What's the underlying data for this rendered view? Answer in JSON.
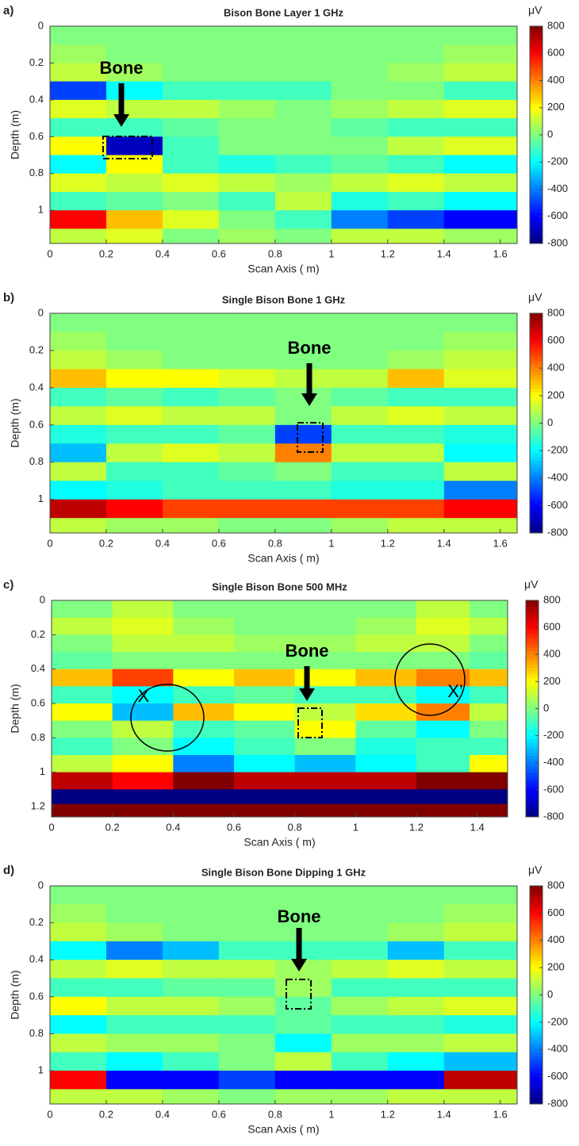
{
  "chart_data": [
    {
      "type": "heatmap",
      "panel": "a)",
      "title": "Bison Bone Layer 1 GHz",
      "xlabel": "Scan Axis ( m)",
      "ylabel": "Depth (m)",
      "xlim": [
        0,
        1.66
      ],
      "ylim": [
        0,
        1.18
      ],
      "y_reversed": true,
      "xticks": [
        0,
        0.2,
        0.4,
        0.6,
        0.8,
        1,
        1.2,
        1.4,
        1.6
      ],
      "yticks": [
        0,
        0.2,
        0.4,
        0.6,
        0.8,
        1
      ],
      "x": [
        0.1,
        0.3,
        0.5,
        0.7,
        0.9,
        1.1,
        1.3,
        1.5
      ],
      "y": [
        0.05,
        0.15,
        0.25,
        0.35,
        0.45,
        0.55,
        0.65,
        0.75,
        0.85,
        0.95,
        1.05,
        1.15
      ],
      "z": [
        [
          0,
          0,
          0,
          0,
          0,
          0,
          0,
          0
        ],
        [
          50,
          0,
          0,
          0,
          0,
          0,
          0,
          50
        ],
        [
          100,
          50,
          0,
          0,
          0,
          0,
          50,
          100
        ],
        [
          -500,
          -200,
          -100,
          -100,
          -100,
          0,
          0,
          -100
        ],
        [
          150,
          100,
          100,
          50,
          0,
          50,
          100,
          150
        ],
        [
          -100,
          -100,
          -50,
          0,
          0,
          -50,
          -100,
          -100
        ],
        [
          200,
          -700,
          -100,
          0,
          0,
          0,
          100,
          150
        ],
        [
          -200,
          200,
          -100,
          -150,
          -100,
          -50,
          -100,
          -200
        ],
        [
          150,
          100,
          150,
          100,
          50,
          100,
          150,
          100
        ],
        [
          -100,
          -50,
          0,
          -100,
          100,
          -150,
          -100,
          -200
        ],
        [
          600,
          300,
          150,
          0,
          -100,
          -400,
          -500,
          -600
        ],
        [
          100,
          150,
          0,
          50,
          0,
          100,
          100,
          50
        ]
      ],
      "colormap": "jet",
      "clim": [
        -800,
        800
      ],
      "cticks": [
        -800,
        -600,
        -400,
        -200,
        0,
        200,
        400,
        600,
        800
      ],
      "colorbar_label": "μV",
      "annotations": [
        "Bone"
      ]
    },
    {
      "type": "heatmap",
      "panel": "b)",
      "title": "Single Bison Bone 1 GHz",
      "xlabel": "Scan Axis ( m)",
      "ylabel": "Depth (m)",
      "xlim": [
        0,
        1.66
      ],
      "ylim": [
        0,
        1.18
      ],
      "y_reversed": true,
      "xticks": [
        0,
        0.2,
        0.4,
        0.6,
        0.8,
        1,
        1.2,
        1.4,
        1.6
      ],
      "yticks": [
        0,
        0.2,
        0.4,
        0.6,
        0.8,
        1
      ],
      "x": [
        0.1,
        0.3,
        0.5,
        0.7,
        0.9,
        1.1,
        1.3,
        1.5
      ],
      "y": [
        0.05,
        0.15,
        0.25,
        0.35,
        0.45,
        0.55,
        0.65,
        0.75,
        0.85,
        0.95,
        1.05,
        1.15
      ],
      "z": [
        [
          0,
          0,
          0,
          0,
          0,
          0,
          0,
          0
        ],
        [
          50,
          0,
          0,
          0,
          0,
          0,
          0,
          50
        ],
        [
          100,
          50,
          0,
          0,
          0,
          0,
          50,
          100
        ],
        [
          300,
          200,
          200,
          150,
          100,
          100,
          300,
          150
        ],
        [
          -100,
          -50,
          -100,
          -50,
          0,
          -50,
          -100,
          -100
        ],
        [
          100,
          150,
          100,
          100,
          0,
          100,
          150,
          100
        ],
        [
          -150,
          -100,
          -100,
          -50,
          -500,
          -100,
          -100,
          -150
        ],
        [
          -300,
          100,
          150,
          100,
          400,
          100,
          100,
          -200
        ],
        [
          100,
          -100,
          -100,
          -50,
          0,
          -100,
          -100,
          100
        ],
        [
          -200,
          -150,
          -100,
          -100,
          -100,
          -150,
          -150,
          -400
        ],
        [
          700,
          600,
          500,
          500,
          500,
          500,
          500,
          600
        ],
        [
          100,
          50,
          50,
          0,
          0,
          50,
          100,
          100
        ]
      ],
      "colormap": "jet",
      "clim": [
        -800,
        800
      ],
      "cticks": [
        -800,
        -600,
        -400,
        -200,
        0,
        200,
        400,
        600,
        800
      ],
      "colorbar_label": "μV",
      "annotations": [
        "Bone"
      ]
    },
    {
      "type": "heatmap",
      "panel": "c)",
      "title": "Single Bison Bone 500 MHz",
      "xlabel": "Scan Axis ( m)",
      "ylabel": "Depth (m)",
      "xlim": [
        0,
        1.5
      ],
      "ylim": [
        0,
        1.26
      ],
      "y_reversed": true,
      "xticks": [
        0,
        0.2,
        0.4,
        0.6,
        0.8,
        1,
        1.2,
        1.4
      ],
      "yticks": [
        0,
        0.2,
        0.4,
        0.6,
        0.8,
        1,
        1.2
      ],
      "x": [
        0.1,
        0.3,
        0.5,
        0.7,
        0.9,
        1.1,
        1.3,
        1.45
      ],
      "y": [
        0.05,
        0.15,
        0.25,
        0.35,
        0.45,
        0.55,
        0.65,
        0.75,
        0.85,
        0.95,
        1.05,
        1.15,
        1.22
      ],
      "z": [
        [
          0,
          100,
          0,
          0,
          0,
          0,
          100,
          0
        ],
        [
          100,
          150,
          50,
          0,
          0,
          50,
          150,
          100
        ],
        [
          0,
          100,
          100,
          50,
          50,
          100,
          100,
          0
        ],
        [
          -50,
          0,
          0,
          0,
          0,
          0,
          0,
          -50
        ],
        [
          300,
          500,
          200,
          300,
          200,
          300,
          400,
          300
        ],
        [
          -100,
          -200,
          -100,
          -50,
          -100,
          -100,
          -200,
          -100
        ],
        [
          200,
          -300,
          300,
          200,
          100,
          250,
          400,
          100
        ],
        [
          0,
          100,
          -100,
          -50,
          200,
          -50,
          -200,
          0
        ],
        [
          -100,
          0,
          -200,
          -100,
          0,
          -150,
          -100,
          -100
        ],
        [
          100,
          200,
          -400,
          -200,
          -300,
          -200,
          -100,
          200
        ],
        [
          700,
          600,
          800,
          700,
          700,
          700,
          800,
          800
        ],
        [
          -800,
          -800,
          -800,
          -800,
          -800,
          -800,
          -800,
          -800
        ],
        [
          800,
          800,
          800,
          800,
          800,
          800,
          800,
          800
        ]
      ],
      "colormap": "jet",
      "clim": [
        -800,
        800
      ],
      "cticks": [
        -800,
        -600,
        -400,
        -200,
        0,
        200,
        400,
        600,
        800
      ],
      "colorbar_label": "μV",
      "annotations": [
        "Bone",
        "X",
        "X’"
      ]
    },
    {
      "type": "heatmap",
      "panel": "d)",
      "title": "Single Bison Bone Dipping 1 GHz",
      "xlabel": "Scan Axis ( m)",
      "ylabel": "Depth (m)",
      "xlim": [
        0,
        1.66
      ],
      "ylim": [
        0,
        1.18
      ],
      "y_reversed": true,
      "xticks": [
        0,
        0.2,
        0.4,
        0.6,
        0.8,
        1,
        1.2,
        1.4,
        1.6
      ],
      "yticks": [
        0,
        0.2,
        0.4,
        0.6,
        0.8,
        1
      ],
      "x": [
        0.1,
        0.3,
        0.5,
        0.7,
        0.9,
        1.1,
        1.3,
        1.5
      ],
      "y": [
        0.05,
        0.15,
        0.25,
        0.35,
        0.45,
        0.55,
        0.65,
        0.75,
        0.85,
        0.95,
        1.05,
        1.15
      ],
      "z": [
        [
          0,
          0,
          0,
          0,
          0,
          0,
          0,
          0
        ],
        [
          50,
          0,
          0,
          0,
          0,
          0,
          0,
          50
        ],
        [
          100,
          50,
          0,
          0,
          0,
          0,
          50,
          100
        ],
        [
          -200,
          -400,
          -300,
          -100,
          -100,
          -100,
          -300,
          -100
        ],
        [
          100,
          150,
          100,
          100,
          50,
          100,
          150,
          100
        ],
        [
          -100,
          -100,
          -50,
          -50,
          50,
          -100,
          -100,
          -100
        ],
        [
          200,
          100,
          100,
          50,
          -50,
          50,
          100,
          150
        ],
        [
          -200,
          -100,
          -100,
          -100,
          -50,
          -100,
          -100,
          -150
        ],
        [
          100,
          50,
          50,
          0,
          -200,
          50,
          50,
          100
        ],
        [
          -100,
          -200,
          -100,
          0,
          100,
          -100,
          -200,
          -300
        ],
        [
          600,
          -600,
          -600,
          -500,
          -600,
          -600,
          -600,
          700
        ],
        [
          100,
          100,
          50,
          0,
          50,
          50,
          100,
          100
        ]
      ],
      "colormap": "jet",
      "clim": [
        -800,
        800
      ],
      "cticks": [
        -800,
        -600,
        -400,
        -200,
        0,
        200,
        400,
        600,
        800
      ],
      "colorbar_label": "μV",
      "annotations": [
        "Bone"
      ]
    }
  ]
}
